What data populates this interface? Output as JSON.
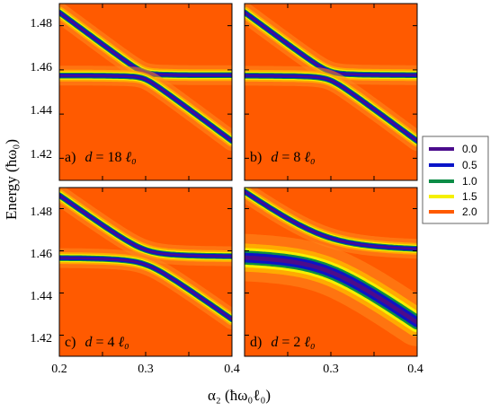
{
  "chart_data": {
    "type": "heatmap",
    "xlabel": "α₂ (ħω₀ℓ₀)",
    "ylabel": "Energy (ħω₀)",
    "xlim": [
      0.2,
      0.4
    ],
    "ylim": [
      1.41,
      1.49
    ],
    "x_ticks": [
      "0.2",
      "0.3",
      "0.4"
    ],
    "y_ticks": [
      "1.42",
      "1.44",
      "1.46",
      "1.48"
    ],
    "legend": {
      "placement": "right",
      "entries": [
        {
          "label": "0.0",
          "color": "#4b0c8c"
        },
        {
          "label": "0.5",
          "color": "#0a14c8"
        },
        {
          "label": "1.0",
          "color": "#0a8c46"
        },
        {
          "label": "1.5",
          "color": "#f5f000"
        },
        {
          "label": "2.0",
          "color": "#ff5a00"
        }
      ]
    },
    "panels": [
      {
        "id": "a",
        "label_prefix": "a)",
        "label_var": "d",
        "label_eq": " = 18 ",
        "label_unit": "ℓ₀",
        "d": 18,
        "coupling": 0.0015,
        "flat": 1.4575
      },
      {
        "id": "b",
        "label_prefix": "b)",
        "label_var": "d",
        "label_eq": " = 8 ",
        "label_unit": "ℓ₀",
        "d": 8,
        "coupling": 0.002,
        "flat": 1.4575
      },
      {
        "id": "c",
        "label_prefix": "c)",
        "label_var": "d",
        "label_eq": " = 4 ",
        "label_unit": "ℓ₀",
        "d": 4,
        "coupling": 0.0035,
        "flat": 1.457
      },
      {
        "id": "d",
        "label_prefix": "d)",
        "label_var": "d",
        "label_eq": " = 2 ",
        "label_unit": "ℓ₀",
        "d": 2,
        "coupling": 0.008,
        "flat": 1.459
      }
    ]
  }
}
